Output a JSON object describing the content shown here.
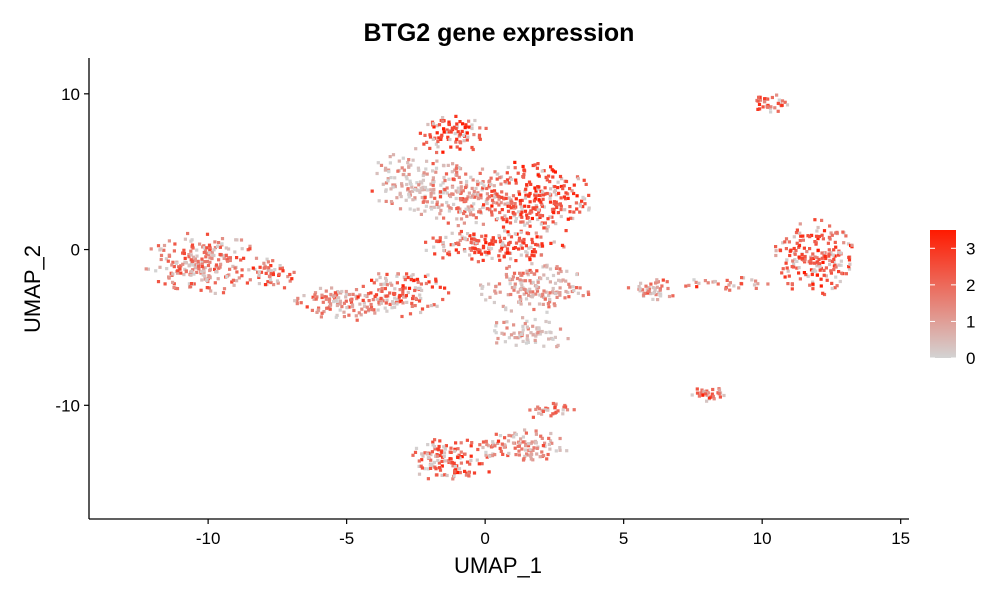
{
  "chart_data": {
    "type": "scatter",
    "title": "BTG2 gene expression",
    "xlabel": "UMAP_1",
    "ylabel": "UMAP_2",
    "xlim": [
      -14.3,
      15.3
    ],
    "ylim": [
      -17.3,
      12.3
    ],
    "x_ticks": [
      {
        "value": -10,
        "label": "-10"
      },
      {
        "value": -5,
        "label": "-5"
      },
      {
        "value": 0,
        "label": "0"
      },
      {
        "value": 5,
        "label": "5"
      },
      {
        "value": 10,
        "label": "10"
      },
      {
        "value": 15,
        "label": "15"
      }
    ],
    "y_ticks": [
      {
        "value": -10,
        "label": "-10"
      },
      {
        "value": 0,
        "label": "0"
      },
      {
        "value": 10,
        "label": "10"
      }
    ],
    "grid": false,
    "legend": {
      "placement": "right",
      "type": "colorbar",
      "min": 0,
      "max": 3.5,
      "low_color": "#d3d3d3",
      "high_color": "#ff1a00",
      "ticks": [
        {
          "value": 0,
          "label": "0"
        },
        {
          "value": 1,
          "label": "1"
        },
        {
          "value": 2,
          "label": "2"
        },
        {
          "value": 3,
          "label": "3"
        }
      ]
    },
    "clusters": [
      {
        "cx": -10.2,
        "cy": -0.9,
        "rx": 2.0,
        "ry": 1.9,
        "expr": 1.7,
        "n": 230
      },
      {
        "cx": -7.8,
        "cy": -1.6,
        "rx": 0.9,
        "ry": 1.0,
        "expr": 2.3,
        "n": 50
      },
      {
        "cx": -5.0,
        "cy": -3.5,
        "rx": 1.8,
        "ry": 1.1,
        "expr": 1.4,
        "n": 120
      },
      {
        "cx": -3.0,
        "cy": -2.8,
        "rx": 1.6,
        "ry": 1.4,
        "expr": 2.2,
        "n": 120
      },
      {
        "cx": -1.2,
        "cy": 7.4,
        "rx": 1.2,
        "ry": 1.3,
        "expr": 2.6,
        "n": 90
      },
      {
        "cx": -2.5,
        "cy": 4.2,
        "rx": 1.6,
        "ry": 2.2,
        "expr": 0.7,
        "n": 140
      },
      {
        "cx": -0.6,
        "cy": 3.4,
        "rx": 1.6,
        "ry": 1.8,
        "expr": 1.6,
        "n": 170
      },
      {
        "cx": 1.8,
        "cy": 3.2,
        "rx": 1.9,
        "ry": 2.4,
        "expr": 2.6,
        "n": 260
      },
      {
        "cx": 1.8,
        "cy": -2.5,
        "rx": 1.9,
        "ry": 1.5,
        "expr": 1.3,
        "n": 160
      },
      {
        "cx": 1.6,
        "cy": -5.4,
        "rx": 1.5,
        "ry": 1.0,
        "expr": 0.7,
        "n": 70
      },
      {
        "cx": 0.3,
        "cy": 0.2,
        "rx": 2.4,
        "ry": 1.0,
        "expr": 2.5,
        "n": 170
      },
      {
        "cx": 10.3,
        "cy": 9.4,
        "rx": 0.6,
        "ry": 0.6,
        "expr": 2.3,
        "n": 35
      },
      {
        "cx": 11.9,
        "cy": -0.5,
        "rx": 1.4,
        "ry": 2.3,
        "expr": 2.3,
        "n": 200
      },
      {
        "cx": 6.0,
        "cy": -2.6,
        "rx": 0.9,
        "ry": 0.7,
        "expr": 1.5,
        "n": 45
      },
      {
        "cx": 8.7,
        "cy": -2.2,
        "rx": 1.5,
        "ry": 0.4,
        "expr": 1.8,
        "n": 30
      },
      {
        "cx": 8.0,
        "cy": -9.3,
        "rx": 0.6,
        "ry": 0.5,
        "expr": 1.9,
        "n": 30
      },
      {
        "cx": -1.2,
        "cy": -13.5,
        "rx": 1.6,
        "ry": 1.4,
        "expr": 2.3,
        "n": 130
      },
      {
        "cx": 1.4,
        "cy": -12.6,
        "rx": 1.6,
        "ry": 1.0,
        "expr": 1.5,
        "n": 110
      },
      {
        "cx": 2.2,
        "cy": -10.3,
        "rx": 1.0,
        "ry": 0.5,
        "expr": 1.6,
        "n": 30
      }
    ]
  }
}
